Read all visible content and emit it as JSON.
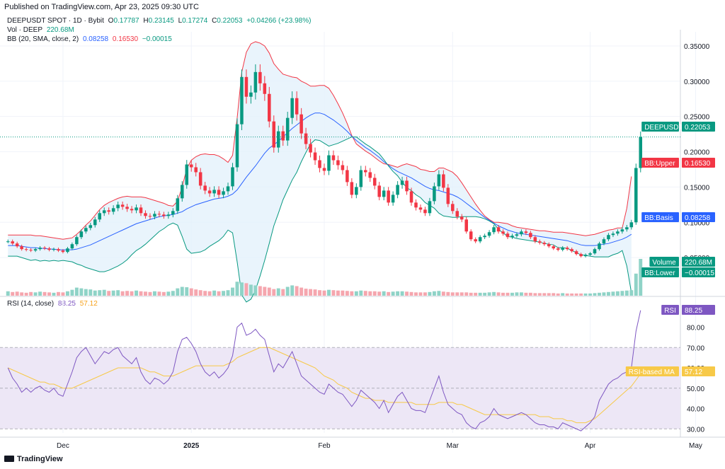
{
  "header": {
    "published": "Published on TradingView.com, Apr 23, 2025 09:30 UTC",
    "symbol_line": "DEEPUSDT SPOT · 1D · Bybit",
    "ohlc": {
      "o_label": "O",
      "o": "0.17787",
      "h_label": "H",
      "h": "0.23145",
      "l_label": "L",
      "l": "0.17274",
      "c_label": "C",
      "c": "0.22053",
      "change": "+0.04266 (+23.98%)"
    },
    "vol_label": "Vol · DEEP",
    "vol_value": "220.68M",
    "bb_label": "BB (20, SMA, close, 2)",
    "bb_basis": "0.08258",
    "bb_upper": "0.16530",
    "bb_lower": "−0.00015",
    "rsi_label": "RSI (14, close)",
    "rsi_value": "88.25",
    "rsi_ma_value": "57.12"
  },
  "price_labels": {
    "symbol_tag": "DEEPUSDT",
    "symbol_value": "0.22053",
    "upper_tag": "BB:Upper",
    "upper_value": "0.16530",
    "basis_tag": "BB:Basis",
    "basis_value": "0.08258",
    "volume_tag": "Volume",
    "volume_value": "220.68M",
    "lower_tag": "BB:Lower",
    "lower_value": "−0.00015",
    "rsi_tag": "RSI",
    "rsi_value": "88.25",
    "rsi_ma_tag": "RSI-based MA",
    "rsi_ma_value": "57.12"
  },
  "footer": {
    "brand": "TradingView"
  },
  "colors": {
    "up": "#089981",
    "down": "#f23645",
    "vol_up": "#8fd3c7",
    "vol_down": "#f5a6ae",
    "bb_upper": "#f23645",
    "bb_lower": "#089981",
    "bb_basis": "#2962ff",
    "bb_fill": "#e3f1fb",
    "rsi": "#7e57c2",
    "rsi_ma": "#f7c948",
    "rsi_band": "#ede7f6"
  },
  "chart_data": [
    {
      "type": "candlestick",
      "title": "DEEPUSDT SPOT · 1D · Bybit",
      "y_ticks": [
        "0.35000",
        "0.30000",
        "0.25000",
        "0.20000",
        "0.15000",
        "0.10000",
        "0.05000"
      ],
      "x_ticks": [
        "Dec",
        "2025",
        "Feb",
        "Mar",
        "Apr",
        "May"
      ],
      "ylim": [
        0.0,
        0.37
      ],
      "series": [
        {
          "name": "DEEPUSDT close",
          "values": [
            0.073,
            0.07,
            0.066,
            0.062,
            0.061,
            0.06,
            0.062,
            0.064,
            0.063,
            0.061,
            0.062,
            0.06,
            0.058,
            0.063,
            0.069,
            0.079,
            0.087,
            0.092,
            0.096,
            0.104,
            0.113,
            0.117,
            0.115,
            0.12,
            0.125,
            0.122,
            0.119,
            0.117,
            0.121,
            0.113,
            0.109,
            0.108,
            0.112,
            0.111,
            0.109,
            0.111,
            0.116,
            0.134,
            0.153,
            0.182,
            0.178,
            0.171,
            0.152,
            0.145,
            0.141,
            0.146,
            0.139,
            0.144,
            0.151,
            0.178,
            0.239,
            0.306,
            0.278,
            0.284,
            0.313,
            0.297,
            0.282,
            0.243,
            0.206,
            0.229,
            0.216,
            0.248,
            0.276,
            0.253,
            0.226,
            0.211,
            0.199,
            0.188,
            0.177,
            0.173,
            0.195,
            0.188,
            0.181,
            0.174,
            0.157,
            0.139,
            0.15,
            0.174,
            0.171,
            0.163,
            0.152,
            0.136,
            0.145,
            0.128,
            0.139,
            0.153,
            0.159,
            0.144,
            0.128,
            0.121,
            0.118,
            0.113,
            0.13,
            0.151,
            0.168,
            0.149,
            0.126,
            0.116,
            0.108,
            0.104,
            0.087,
            0.076,
            0.073,
            0.079,
            0.081,
            0.086,
            0.093,
            0.087,
            0.084,
            0.079,
            0.081,
            0.083,
            0.087,
            0.085,
            0.079,
            0.073,
            0.071,
            0.069,
            0.066,
            0.063,
            0.061,
            0.064,
            0.062,
            0.059,
            0.055,
            0.052,
            0.054,
            0.056,
            0.062,
            0.07,
            0.076,
            0.082,
            0.084,
            0.087,
            0.09,
            0.093,
            0.1,
            0.177,
            0.221
          ]
        }
      ]
    },
    {
      "type": "line",
      "title": "BB (20, SMA, close, 2)",
      "series": [
        {
          "name": "BB:Upper",
          "values": [
            0.082,
            0.082,
            0.082,
            0.082,
            0.082,
            0.082,
            0.081,
            0.081,
            0.08,
            0.079,
            0.078,
            0.077,
            0.076,
            0.077,
            0.078,
            0.083,
            0.089,
            0.096,
            0.102,
            0.11,
            0.118,
            0.124,
            0.128,
            0.131,
            0.134,
            0.136,
            0.137,
            0.136,
            0.136,
            0.136,
            0.135,
            0.133,
            0.131,
            0.129,
            0.127,
            0.124,
            0.123,
            0.13,
            0.15,
            0.176,
            0.188,
            0.193,
            0.196,
            0.197,
            0.196,
            0.196,
            0.194,
            0.19,
            0.185,
            0.195,
            0.248,
            0.313,
            0.341,
            0.353,
            0.356,
            0.354,
            0.35,
            0.34,
            0.325,
            0.317,
            0.31,
            0.308,
            0.306,
            0.305,
            0.3,
            0.297,
            0.293,
            0.293,
            0.294,
            0.294,
            0.29,
            0.28,
            0.268,
            0.255,
            0.24,
            0.223,
            0.211,
            0.206,
            0.201,
            0.197,
            0.192,
            0.187,
            0.183,
            0.182,
            0.18,
            0.178,
            0.181,
            0.183,
            0.181,
            0.179,
            0.175,
            0.174,
            0.172,
            0.172,
            0.177,
            0.177,
            0.174,
            0.171,
            0.165,
            0.156,
            0.146,
            0.136,
            0.126,
            0.117,
            0.109,
            0.104,
            0.1,
            0.1,
            0.099,
            0.098,
            0.095,
            0.093,
            0.092,
            0.091,
            0.09,
            0.089,
            0.088,
            0.088,
            0.087,
            0.086,
            0.086,
            0.086,
            0.085,
            0.084,
            0.083,
            0.082,
            0.081,
            0.082,
            0.083,
            0.085,
            0.087,
            0.089,
            0.09,
            0.092,
            0.092,
            0.12,
            0.165
          ]
        },
        {
          "name": "BB:Basis",
          "values": [
            0.067,
            0.067,
            0.067,
            0.066,
            0.065,
            0.064,
            0.064,
            0.063,
            0.063,
            0.062,
            0.062,
            0.061,
            0.061,
            0.061,
            0.061,
            0.062,
            0.064,
            0.066,
            0.068,
            0.071,
            0.074,
            0.077,
            0.08,
            0.083,
            0.086,
            0.089,
            0.092,
            0.095,
            0.098,
            0.1,
            0.102,
            0.104,
            0.106,
            0.108,
            0.109,
            0.11,
            0.111,
            0.113,
            0.115,
            0.119,
            0.122,
            0.125,
            0.127,
            0.129,
            0.131,
            0.133,
            0.134,
            0.135,
            0.137,
            0.14,
            0.146,
            0.155,
            0.164,
            0.172,
            0.18,
            0.189,
            0.198,
            0.205,
            0.21,
            0.215,
            0.221,
            0.227,
            0.233,
            0.238,
            0.243,
            0.248,
            0.252,
            0.255,
            0.255,
            0.253,
            0.249,
            0.245,
            0.24,
            0.235,
            0.229,
            0.222,
            0.216,
            0.211,
            0.206,
            0.202,
            0.197,
            0.192,
            0.186,
            0.181,
            0.176,
            0.172,
            0.169,
            0.166,
            0.163,
            0.159,
            0.155,
            0.151,
            0.148,
            0.146,
            0.145,
            0.143,
            0.141,
            0.139,
            0.136,
            0.132,
            0.127,
            0.122,
            0.117,
            0.112,
            0.107,
            0.103,
            0.099,
            0.095,
            0.092,
            0.089,
            0.087,
            0.085,
            0.084,
            0.083,
            0.082,
            0.081,
            0.08,
            0.079,
            0.078,
            0.077,
            0.076,
            0.075,
            0.074,
            0.072,
            0.07,
            0.068,
            0.067,
            0.067,
            0.067,
            0.068,
            0.069,
            0.07,
            0.072,
            0.074,
            0.076,
            0.079,
            0.083
          ]
        },
        {
          "name": "BB:Lower",
          "values": [
            0.052,
            0.052,
            0.052,
            0.05,
            0.048,
            0.046,
            0.047,
            0.045,
            0.046,
            0.045,
            0.046,
            0.045,
            0.046,
            0.045,
            0.044,
            0.041,
            0.039,
            0.036,
            0.034,
            0.032,
            0.03,
            0.03,
            0.032,
            0.035,
            0.038,
            0.042,
            0.047,
            0.054,
            0.06,
            0.064,
            0.069,
            0.075,
            0.081,
            0.087,
            0.091,
            0.096,
            0.099,
            0.096,
            0.08,
            0.062,
            0.056,
            0.057,
            0.058,
            0.061,
            0.066,
            0.07,
            0.074,
            0.08,
            0.089,
            0.085,
            0.044,
            -0.003,
            -0.013,
            -0.009,
            0.004,
            0.024,
            0.046,
            0.07,
            0.095,
            0.113,
            0.132,
            0.146,
            0.16,
            0.171,
            0.186,
            0.199,
            0.211,
            0.217,
            0.216,
            0.212,
            0.208,
            0.21,
            0.212,
            0.215,
            0.218,
            0.221,
            0.221,
            0.216,
            0.211,
            0.207,
            0.202,
            0.197,
            0.189,
            0.18,
            0.172,
            0.166,
            0.157,
            0.149,
            0.145,
            0.139,
            0.135,
            0.128,
            0.124,
            0.12,
            0.113,
            0.109,
            0.108,
            0.107,
            0.107,
            0.108,
            0.108,
            0.108,
            0.108,
            0.107,
            0.105,
            0.102,
            0.098,
            0.09,
            0.085,
            0.08,
            0.079,
            0.077,
            0.076,
            0.075,
            0.074,
            0.073,
            0.072,
            0.07,
            0.069,
            0.068,
            0.064,
            0.064,
            0.063,
            0.06,
            0.057,
            0.054,
            0.053,
            0.052,
            0.051,
            0.051,
            0.051,
            0.051,
            0.054,
            0.056,
            0.06,
            0.038,
            0.0
          ]
        }
      ]
    },
    {
      "type": "bar",
      "title": "Vol · DEEP",
      "series": [
        {
          "name": "Volume",
          "values": [
            12,
            10,
            11,
            9,
            8,
            10,
            9,
            11,
            10,
            9,
            8,
            10,
            9,
            12,
            16,
            22,
            20,
            18,
            17,
            14,
            15,
            16,
            13,
            14,
            15,
            12,
            13,
            12,
            14,
            12,
            11,
            10,
            12,
            11,
            10,
            11,
            13,
            20,
            24,
            23,
            20,
            17,
            15,
            13,
            12,
            14,
            12,
            13,
            15,
            22,
            38,
            36,
            34,
            30,
            28,
            26,
            24,
            22,
            18,
            20,
            18,
            24,
            28,
            26,
            22,
            19,
            18,
            17,
            15,
            14,
            16,
            15,
            14,
            14,
            13,
            12,
            12,
            14,
            13,
            12,
            12,
            11,
            12,
            10,
            11,
            12,
            12,
            11,
            10,
            9,
            9,
            9,
            10,
            12,
            13,
            11,
            10,
            9,
            9,
            9,
            9,
            8,
            8,
            8,
            8,
            9,
            10,
            9,
            8,
            8,
            8,
            9,
            9,
            8,
            8,
            7,
            7,
            7,
            7,
            7,
            6,
            7,
            6,
            6,
            6,
            6,
            6,
            6,
            7,
            8,
            9,
            10,
            11,
            12,
            13,
            14,
            15,
            60,
            100
          ]
        }
      ]
    },
    {
      "type": "line",
      "title": "RSI (14, close)",
      "y_ticks": [
        "90.00",
        "80.00",
        "70.00",
        "60.00",
        "50.00",
        "40.00",
        "30.00"
      ],
      "ylim": [
        28,
        92
      ],
      "series": [
        {
          "name": "RSI",
          "values": [
            60,
            55,
            52,
            48,
            50,
            48,
            50,
            51,
            49,
            48,
            50,
            47,
            46,
            52,
            58,
            65,
            68,
            70,
            66,
            62,
            65,
            68,
            67,
            69,
            70,
            66,
            64,
            62,
            65,
            58,
            54,
            52,
            55,
            54,
            52,
            54,
            58,
            68,
            74,
            75,
            72,
            68,
            62,
            58,
            56,
            58,
            55,
            57,
            60,
            66,
            80,
            82,
            76,
            77,
            79,
            76,
            74,
            66,
            58,
            62,
            60,
            64,
            68,
            62,
            56,
            54,
            52,
            50,
            48,
            47,
            52,
            50,
            48,
            47,
            44,
            41,
            44,
            49,
            47,
            45,
            43,
            40,
            44,
            38,
            42,
            46,
            48,
            44,
            40,
            39,
            39,
            38,
            44,
            50,
            56,
            48,
            42,
            40,
            38,
            37,
            33,
            31,
            30,
            33,
            34,
            36,
            40,
            37,
            36,
            35,
            36,
            37,
            38,
            37,
            35,
            33,
            32,
            32,
            31,
            31,
            30,
            33,
            32,
            31,
            30,
            29,
            31,
            33,
            36,
            44,
            48,
            52,
            54,
            55,
            57,
            58,
            60,
            78,
            88.25
          ]
        },
        {
          "name": "RSI-based MA",
          "values": [
            60,
            59,
            58,
            57,
            56,
            55,
            54,
            53,
            53,
            52,
            52,
            51,
            50,
            50,
            50,
            51,
            52,
            53,
            54,
            55,
            56,
            57,
            58,
            59,
            60,
            60,
            60,
            60,
            60,
            60,
            59,
            58,
            58,
            57,
            56,
            56,
            56,
            57,
            58,
            59,
            60,
            61,
            61,
            61,
            61,
            61,
            61,
            61,
            62,
            63,
            65,
            66,
            67,
            68,
            69,
            70,
            70,
            70,
            69,
            68,
            67,
            66,
            65,
            64,
            63,
            62,
            61,
            60,
            58,
            56,
            55,
            54,
            52,
            51,
            50,
            48,
            47,
            46,
            45,
            45,
            44,
            44,
            44,
            43,
            43,
            43,
            43,
            43,
            43,
            42,
            42,
            42,
            42,
            42,
            43,
            43,
            43,
            43,
            42,
            42,
            41,
            40,
            39,
            38,
            37,
            37,
            37,
            37,
            37,
            37,
            37,
            37,
            37,
            37,
            37,
            37,
            36,
            36,
            36,
            35,
            35,
            35,
            34,
            34,
            33,
            33,
            33,
            34,
            35,
            37,
            39,
            41,
            43,
            45,
            47,
            49,
            51,
            54,
            57.12
          ]
        }
      ]
    }
  ]
}
